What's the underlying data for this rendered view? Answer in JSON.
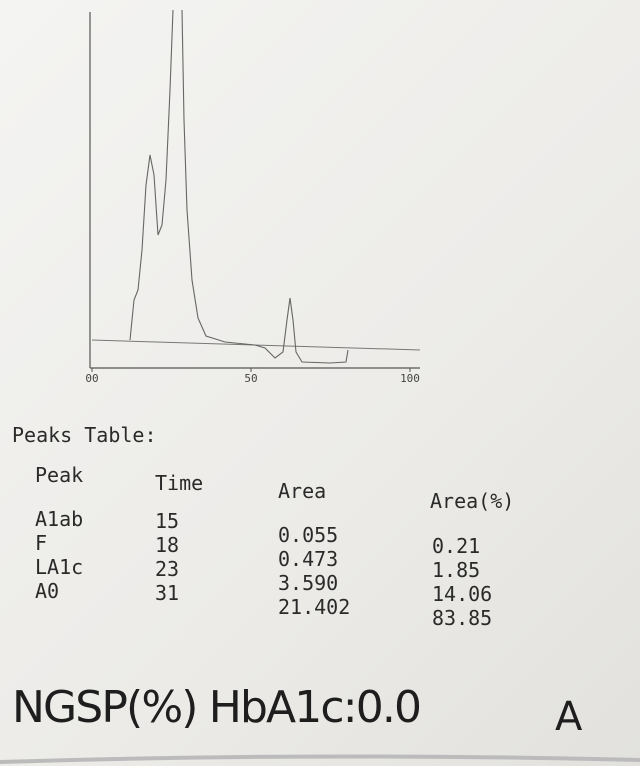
{
  "chromatogram": {
    "xlim": [
      0,
      100
    ],
    "xticks": [
      {
        "value": 0,
        "label": "00"
      },
      50,
      100
    ]
  },
  "peaks_table": {
    "title": "Peaks Table:",
    "header": [
      "Peak",
      "Time",
      "Area",
      "Area(%)"
    ],
    "rows": [
      [
        "A1ab",
        "15",
        "0.055",
        "0.21"
      ],
      [
        "F",
        "18",
        "0.473",
        "1.85"
      ],
      [
        "LA1c",
        "23",
        "3.590",
        "14.06"
      ],
      [
        "A0",
        "31",
        "21.402",
        "83.85"
      ]
    ]
  },
  "result": {
    "text": "NGSP(%) HbA1c:0.0",
    "mark": "A"
  }
}
